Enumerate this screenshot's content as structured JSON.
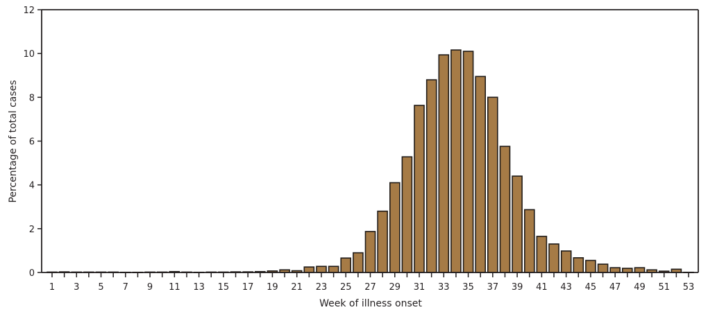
{
  "chart_data": {
    "type": "bar",
    "title": "",
    "xlabel": "Week of illness onset",
    "ylabel": "Percentage of total cases",
    "ylim": [
      0,
      12
    ],
    "yticks": [
      0,
      2,
      4,
      6,
      8,
      10,
      12
    ],
    "xtick_labels": [
      "1",
      "3",
      "5",
      "7",
      "9",
      "11",
      "13",
      "15",
      "17",
      "19",
      "21",
      "23",
      "25",
      "27",
      "29",
      "31",
      "33",
      "35",
      "37",
      "39",
      "41",
      "43",
      "45",
      "47",
      "49",
      "51",
      "53"
    ],
    "grid": false,
    "legend": null,
    "bar_color": "#a67b46",
    "bar_edge_color": "#1e1a17",
    "categories": [
      1,
      2,
      3,
      4,
      5,
      6,
      7,
      8,
      9,
      10,
      11,
      12,
      13,
      14,
      15,
      16,
      17,
      18,
      19,
      20,
      21,
      22,
      23,
      24,
      25,
      26,
      27,
      28,
      29,
      30,
      31,
      32,
      33,
      34,
      35,
      36,
      37,
      38,
      39,
      40,
      41,
      42,
      43,
      44,
      45,
      46,
      47,
      48,
      49,
      50,
      51,
      52,
      53
    ],
    "values": [
      0.02,
      0.03,
      0.02,
      0.02,
      0.02,
      0.02,
      0.01,
      0.01,
      0.02,
      0.02,
      0.04,
      0.02,
      0.01,
      0.02,
      0.02,
      0.03,
      0.03,
      0.04,
      0.07,
      0.12,
      0.08,
      0.25,
      0.28,
      0.28,
      0.66,
      0.9,
      1.87,
      2.8,
      4.1,
      5.28,
      7.63,
      8.8,
      9.94,
      10.16,
      10.1,
      8.95,
      8.0,
      5.76,
      4.4,
      2.87,
      1.65,
      1.3,
      0.98,
      0.67,
      0.55,
      0.38,
      0.22,
      0.19,
      0.22,
      0.12,
      0.06,
      0.15,
      0.01
    ]
  }
}
